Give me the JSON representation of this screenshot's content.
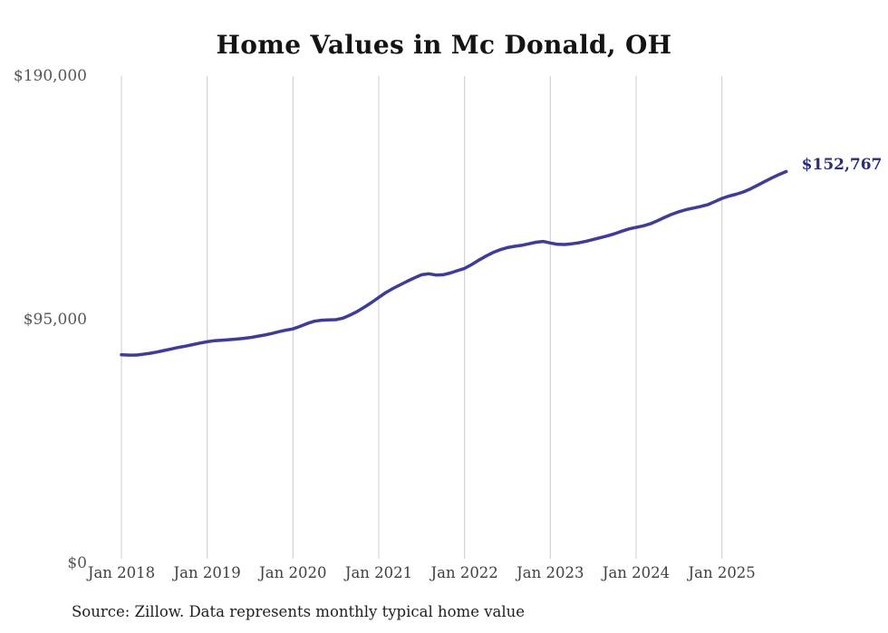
{
  "colors": {
    "line": "#3e3c98",
    "end_label": "#2a2d7c",
    "gridline": "#cccccc",
    "title_text": "#141414",
    "axis_text": "#414143",
    "background": "#ffffff"
  },
  "chart_data": {
    "type": "line",
    "title": "Home Values in Mc Donald, OH",
    "source_note": "Source: Zillow. Data represents monthly typical home value",
    "end_label": "$152,767",
    "legend_position": "none",
    "grid": "vertical-only",
    "xlabel": "",
    "ylabel": "",
    "ylim": [
      0,
      190000
    ],
    "y_ticks": [
      {
        "label": "$190,000",
        "value": 190000
      },
      {
        "label": "$95,000",
        "value": 95000
      },
      {
        "label": "$0",
        "value": 0
      }
    ],
    "x_tick_labels": [
      "Jan 2018",
      "Jan 2019",
      "Jan 2020",
      "Jan 2021",
      "Jan 2022",
      "Jan 2023",
      "Jan 2024",
      "Jan 2025"
    ],
    "series": [
      {
        "name": "Monthly typical home value",
        "color": "#3e3c98",
        "final_value": 152767,
        "x": [
          "2018-01",
          "2018-02",
          "2018-03",
          "2018-04",
          "2018-05",
          "2018-06",
          "2018-07",
          "2018-08",
          "2018-09",
          "2018-10",
          "2018-11",
          "2018-12",
          "2019-01",
          "2019-02",
          "2019-03",
          "2019-04",
          "2019-05",
          "2019-06",
          "2019-07",
          "2019-08",
          "2019-09",
          "2019-10",
          "2019-11",
          "2019-12",
          "2020-01",
          "2020-02",
          "2020-03",
          "2020-04",
          "2020-05",
          "2020-06",
          "2020-07",
          "2020-08",
          "2020-09",
          "2020-10",
          "2020-11",
          "2020-12",
          "2021-01",
          "2021-02",
          "2021-03",
          "2021-04",
          "2021-05",
          "2021-06",
          "2021-07",
          "2021-08",
          "2021-09",
          "2021-10",
          "2021-11",
          "2021-12",
          "2022-01",
          "2022-02",
          "2022-03",
          "2022-04",
          "2022-05",
          "2022-06",
          "2022-07",
          "2022-08",
          "2022-09",
          "2022-10",
          "2022-11",
          "2022-12",
          "2023-01",
          "2023-02",
          "2023-03",
          "2023-04",
          "2023-05",
          "2023-06",
          "2023-07",
          "2023-08",
          "2023-09",
          "2023-10",
          "2023-11",
          "2023-12",
          "2024-01",
          "2024-02",
          "2024-03",
          "2024-04",
          "2024-05",
          "2024-06",
          "2024-07",
          "2024-08",
          "2024-09",
          "2024-10",
          "2024-11",
          "2024-12",
          "2025-01",
          "2025-02",
          "2025-03",
          "2025-04",
          "2025-05",
          "2025-06",
          "2025-07",
          "2025-08",
          "2025-09",
          "2025-10"
        ],
        "values": [
          81300,
          81200,
          81200,
          81500,
          81900,
          82400,
          83000,
          83600,
          84200,
          84700,
          85300,
          85900,
          86400,
          86800,
          87000,
          87200,
          87400,
          87700,
          88000,
          88500,
          89000,
          89600,
          90300,
          90900,
          91400,
          92400,
          93500,
          94400,
          94800,
          94900,
          95000,
          95600,
          96800,
          98200,
          99900,
          101700,
          103700,
          105600,
          107200,
          108600,
          110000,
          111300,
          112500,
          112900,
          112400,
          112500,
          113200,
          114100,
          115000,
          116500,
          118200,
          119800,
          121200,
          122300,
          123100,
          123600,
          124000,
          124600,
          125200,
          125500,
          124900,
          124400,
          124300,
          124600,
          125000,
          125600,
          126300,
          127000,
          127700,
          128500,
          129500,
          130400,
          131000,
          131600,
          132400,
          133600,
          134900,
          136100,
          137100,
          137900,
          138500,
          139100,
          139800,
          141000,
          142300,
          143200,
          143900,
          144800,
          146000,
          147400,
          148900,
          150300,
          151600,
          152767
        ]
      }
    ]
  }
}
